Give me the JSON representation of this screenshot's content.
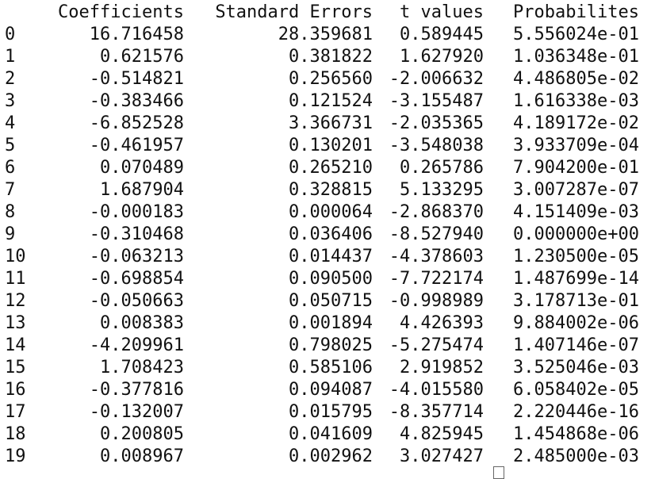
{
  "table": {
    "headers": {
      "index": "",
      "coefficients": "Coefficients",
      "standard_errors": "Standard Errors",
      "t_values": "t values",
      "probabilities": "Probabilites"
    },
    "rows": [
      {
        "index": "0",
        "coef": "16.716458",
        "se": "28.359681",
        "t": "0.589445",
        "p": "5.556024e-01"
      },
      {
        "index": "1",
        "coef": "0.621576",
        "se": "0.381822",
        "t": "1.627920",
        "p": "1.036348e-01"
      },
      {
        "index": "2",
        "coef": "-0.514821",
        "se": "0.256560",
        "t": "-2.006632",
        "p": "4.486805e-02"
      },
      {
        "index": "3",
        "coef": "-0.383466",
        "se": "0.121524",
        "t": "-3.155487",
        "p": "1.616338e-03"
      },
      {
        "index": "4",
        "coef": "-6.852528",
        "se": "3.366731",
        "t": "-2.035365",
        "p": "4.189172e-02"
      },
      {
        "index": "5",
        "coef": "-0.461957",
        "se": "0.130201",
        "t": "-3.548038",
        "p": "3.933709e-04"
      },
      {
        "index": "6",
        "coef": "0.070489",
        "se": "0.265210",
        "t": "0.265786",
        "p": "7.904200e-01"
      },
      {
        "index": "7",
        "coef": "1.687904",
        "se": "0.328815",
        "t": "5.133295",
        "p": "3.007287e-07"
      },
      {
        "index": "8",
        "coef": "-0.000183",
        "se": "0.000064",
        "t": "-2.868370",
        "p": "4.151409e-03"
      },
      {
        "index": "9",
        "coef": "-0.310468",
        "se": "0.036406",
        "t": "-8.527940",
        "p": "0.000000e+00"
      },
      {
        "index": "10",
        "coef": "-0.063213",
        "se": "0.014437",
        "t": "-4.378603",
        "p": "1.230500e-05"
      },
      {
        "index": "11",
        "coef": "-0.698854",
        "se": "0.090500",
        "t": "-7.722174",
        "p": "1.487699e-14"
      },
      {
        "index": "12",
        "coef": "-0.050663",
        "se": "0.050715",
        "t": "-0.998989",
        "p": "3.178713e-01"
      },
      {
        "index": "13",
        "coef": "0.008383",
        "se": "0.001894",
        "t": "4.426393",
        "p": "9.884002e-06"
      },
      {
        "index": "14",
        "coef": "-4.209961",
        "se": "0.798025",
        "t": "-5.275474",
        "p": "1.407146e-07"
      },
      {
        "index": "15",
        "coef": "1.708423",
        "se": "0.585106",
        "t": "2.919852",
        "p": "3.525046e-03"
      },
      {
        "index": "16",
        "coef": "-0.377816",
        "se": "0.094087",
        "t": "-4.015580",
        "p": "6.058402e-05"
      },
      {
        "index": "17",
        "coef": "-0.132007",
        "se": "0.015795",
        "t": "-8.357714",
        "p": "2.220446e-16"
      },
      {
        "index": "18",
        "coef": "0.200805",
        "se": "0.041609",
        "t": "4.825945",
        "p": "1.454868e-06"
      },
      {
        "index": "19",
        "coef": "0.008967",
        "se": "0.002962",
        "t": "3.027427",
        "p": "2.485000e-03"
      }
    ]
  },
  "colors": {
    "text": "#111111",
    "background": "#ffffff"
  }
}
